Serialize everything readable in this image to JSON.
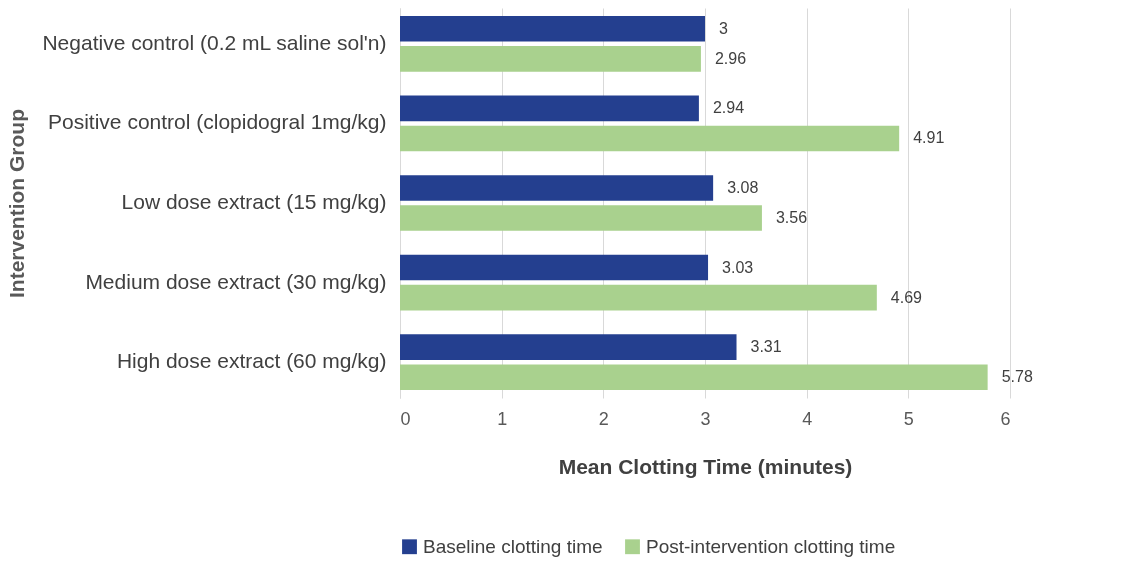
{
  "chart_data": {
    "type": "bar",
    "orientation": "horizontal",
    "xlabel": "Mean Clotting Time (minutes)",
    "ylabel": "Intervention Group",
    "categories": [
      "Negative control (0.2 mL saline sol'n)",
      "Positive control (clopidogral 1mg/kg)",
      "Low dose extract (15 mg/kg)",
      "Medium dose extract (30 mg/kg)",
      "High dose extract (60 mg/kg)"
    ],
    "series": [
      {
        "name": "Baseline clotting time",
        "color": "#243f8f",
        "values": [
          3,
          2.94,
          3.08,
          3.03,
          3.31
        ]
      },
      {
        "name": "Post-intervention clotting time",
        "color": "#a9d18e",
        "values": [
          2.96,
          4.91,
          3.56,
          4.69,
          5.78
        ]
      }
    ],
    "xlim": [
      0,
      6
    ],
    "xticks": [
      0,
      1,
      2,
      3,
      4,
      5,
      6
    ],
    "grid": "x",
    "legend": "bottom",
    "data_labels": true
  }
}
